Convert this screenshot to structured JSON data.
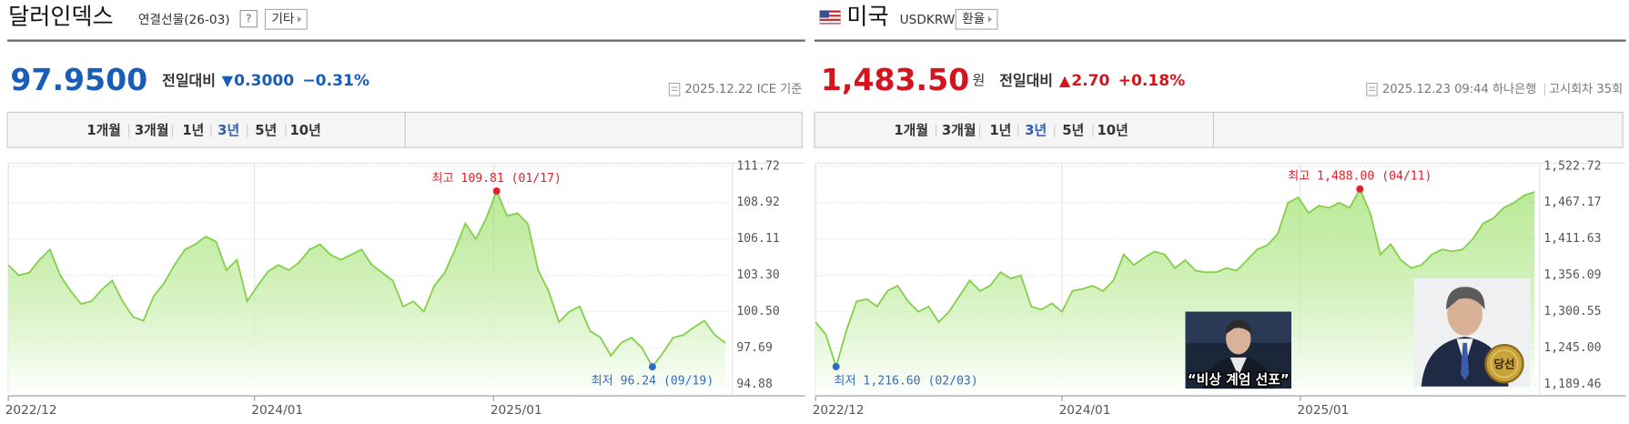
{
  "panels": [
    {
      "title": "달러인덱스",
      "subtitle": "연결선물(26-03)",
      "help": "?",
      "button": "기타",
      "price": "97.9500",
      "change_label": "전일대비",
      "change_arrow": "▼",
      "change": "0.3000",
      "change_pct": "−0.31%",
      "color": "#1a5db8",
      "date": "2025.12.22 ICE 기준",
      "tabs": [
        "1개월",
        "3개월",
        "1년",
        "3년",
        "5년",
        "10년"
      ],
      "active_tab": 3
    },
    {
      "title": "미국",
      "subtitle": "USDKRW",
      "button": "환율",
      "price": "1,483.50",
      "price_unit": "원",
      "change_label": "전일대비",
      "change_arrow": "▲",
      "change": "2.70",
      "change_pct": "+0.18%",
      "color": "#d4151d",
      "date": "2025.12.23 09:44 하나은행",
      "extra": "고시회차 35회",
      "tabs": [
        "1개월",
        "3개월",
        "1년",
        "3년",
        "5년",
        "10년"
      ],
      "active_tab": 3,
      "caption": "“비상 계엄 선포”",
      "badge": "당선"
    }
  ],
  "chart_data": [
    {
      "type": "area",
      "color": "#84cf4c",
      "values": [
        104.1,
        103.3,
        103.5,
        104.5,
        105.3,
        103.3,
        102.1,
        101.1,
        101.3,
        102.2,
        102.9,
        101.3,
        100.1,
        99.8,
        101.7,
        102.7,
        104.1,
        105.3,
        105.7,
        106.3,
        105.9,
        103.7,
        104.5,
        101.3,
        102.5,
        103.6,
        104.1,
        103.7,
        104.3,
        105.3,
        105.7,
        104.9,
        104.5,
        104.9,
        105.3,
        104.1,
        103.5,
        102.9,
        100.9,
        101.3,
        100.5,
        102.5,
        103.5,
        105.3,
        107.3,
        106.1,
        107.7,
        109.81,
        107.9,
        108.1,
        107.3,
        103.7,
        102.1,
        99.7,
        100.5,
        100.9,
        99.0,
        98.5,
        97.1,
        98.1,
        98.5,
        97.7,
        96.24,
        97.3,
        98.5,
        98.7,
        99.3,
        99.8,
        98.7,
        98.1
      ],
      "xlim": [
        0,
        69.7
      ],
      "xticks": [
        {
          "value": 0,
          "label": "2022/12"
        },
        {
          "value": 23.7,
          "label": "2024/01"
        },
        {
          "value": 46.7,
          "label": "2025/01"
        }
      ],
      "ylim": [
        94.0,
        111.72
      ],
      "yticks": [
        94.88,
        97.69,
        {
          "value": 100.5,
          "label": "100.50"
        },
        {
          "value": 103.3,
          "label": "103.30"
        },
        106.11,
        108.92,
        111.72
      ],
      "grid": true,
      "high": {
        "label": "최고 109.81 (01/17)",
        "value": 109.81,
        "color": "#e0202a"
      },
      "low": {
        "label": "최저 96.24 (09/19)",
        "value": 96.24,
        "color": "#2f6dc4"
      }
    },
    {
      "type": "area",
      "color": "#84cf4c",
      "values": [
        1284.7,
        1265.6,
        1216.6,
        1272,
        1316.4,
        1319.6,
        1308.5,
        1332.3,
        1340.2,
        1316.4,
        1300.6,
        1308.5,
        1284.7,
        1300.6,
        1324.3,
        1348.2,
        1332.3,
        1340.2,
        1360.8,
        1351.3,
        1356,
        1308.5,
        1303.7,
        1313.2,
        1300.6,
        1332.3,
        1335.5,
        1340.2,
        1332.3,
        1348.2,
        1387.8,
        1372,
        1383.1,
        1392.6,
        1387.8,
        1367.2,
        1379.2,
        1363.3,
        1360.8,
        1360.8,
        1367.2,
        1363.3,
        1379.2,
        1395.8,
        1402.1,
        1419.6,
        1467.2,
        1475.1,
        1451.3,
        1462.4,
        1459.2,
        1467.2,
        1459.2,
        1488.0,
        1451.3,
        1387.8,
        1403.7,
        1379.2,
        1367.2,
        1372,
        1387.8,
        1395.8,
        1392.6,
        1395.8,
        1411.6,
        1435.4,
        1443.4,
        1459.2,
        1467.2,
        1478.3,
        1483.5
      ],
      "xlim": [
        0,
        70.5
      ],
      "xticks": [
        {
          "value": 0,
          "label": "2022/12"
        },
        {
          "value": 24.0,
          "label": "2024/01"
        },
        {
          "value": 47.2,
          "label": "2025/01"
        }
      ],
      "ylim": [
        1172,
        1522.72
      ],
      "yticks": [
        {
          "value": 1189.46,
          "label": "1,189.46"
        },
        {
          "value": 1245,
          "label": "1,245.00"
        },
        {
          "value": 1300.55,
          "label": "1,300.55"
        },
        {
          "value": 1356.09,
          "label": "1,356.09"
        },
        {
          "value": 1411.63,
          "label": "1,411.63"
        },
        {
          "value": 1467.17,
          "label": "1,467.17"
        },
        {
          "value": 1522.72,
          "label": "1,522.72"
        }
      ],
      "grid": true,
      "high": {
        "label": "최고 1,488.00 (04/11)",
        "value": 1488,
        "color": "#e0202a"
      },
      "low": {
        "label": "최저 1,216.60 (02/03)",
        "value": 1216.6,
        "color": "#2f6dc4"
      }
    }
  ]
}
